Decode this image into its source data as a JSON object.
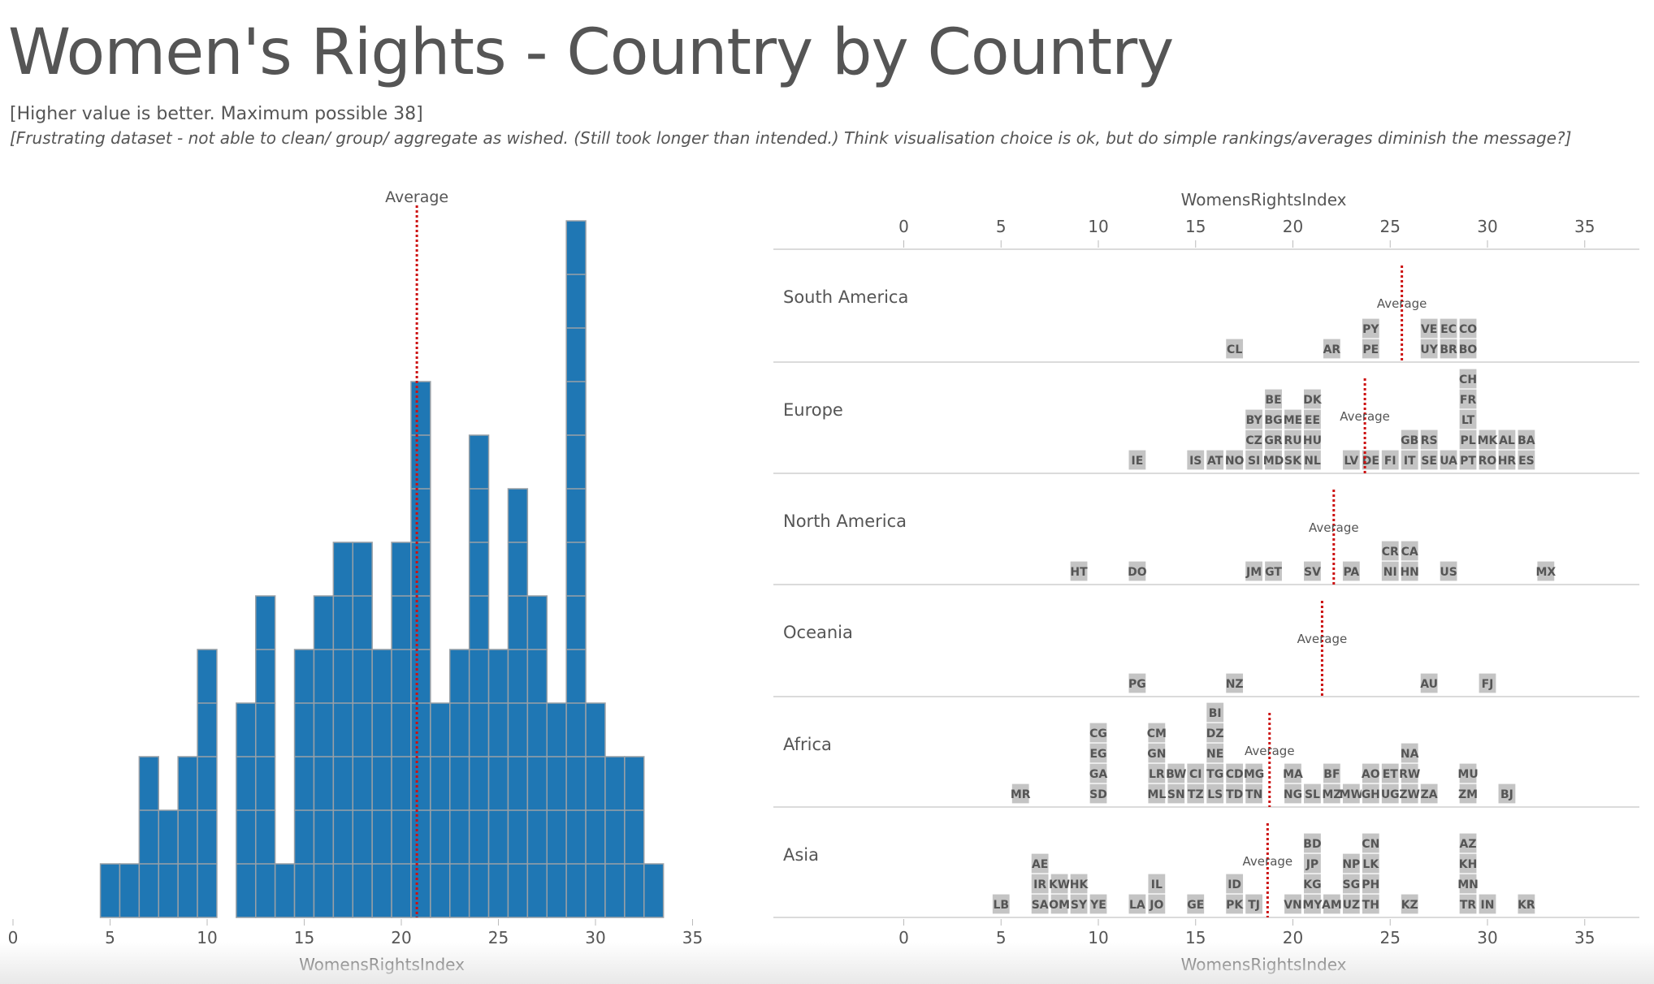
{
  "title": "Women's Rights - Country by Country",
  "subtitle": "[Higher value is better. Maximum possible 38]",
  "note": "[Frustrating dataset - not able to clean/ group/ aggregate as wished. (Still took longer than intended.) Think visualisation choice is ok, but do simple rankings/averages diminish the message?]",
  "colors": {
    "bar": "#1f77b4",
    "bar_stroke": "#9aa0a6",
    "tile": "#c4c4c4",
    "tile_stroke": "#ffffff",
    "average": "#cc1111",
    "text": "#555555"
  },
  "chart_data": [
    {
      "type": "bar",
      "xlabel": "WomensRightsIndex",
      "ylabel": "",
      "xlim": [
        0,
        35
      ],
      "x_ticks": [
        0,
        5,
        10,
        15,
        20,
        25,
        30,
        35
      ],
      "average_label": "Average",
      "average": 20.8,
      "x": [
        5,
        6,
        7,
        8,
        9,
        10,
        12,
        13,
        14,
        15,
        16,
        17,
        18,
        19,
        20,
        21,
        22,
        23,
        24,
        25,
        26,
        27,
        28,
        29,
        30,
        31,
        32,
        33
      ],
      "values": [
        1,
        1,
        3,
        2,
        3,
        5,
        4,
        6,
        1,
        5,
        6,
        7,
        7,
        5,
        7,
        10,
        4,
        5,
        9,
        5,
        8,
        6,
        4,
        13,
        4,
        3,
        3,
        1
      ]
    },
    {
      "type": "scatter",
      "xlabel": "WomensRightsIndex",
      "xlim": [
        0,
        38
      ],
      "x_ticks": [
        0,
        5,
        10,
        15,
        20,
        25,
        30,
        35
      ],
      "average_label": "Average",
      "groups": [
        {
          "name": "South America",
          "average": 25.6,
          "points": [
            [
              "CL",
              17
            ],
            [
              "AR",
              22
            ],
            [
              "PE",
              24
            ],
            [
              "PY",
              24
            ],
            [
              "UY",
              27
            ],
            [
              "VE",
              27
            ],
            [
              "BR",
              28
            ],
            [
              "EC",
              28
            ],
            [
              "BO",
              29
            ],
            [
              "CO",
              29
            ]
          ]
        },
        {
          "name": "Europe",
          "average": 23.7,
          "points": [
            [
              "IE",
              12
            ],
            [
              "IS",
              15
            ],
            [
              "AT",
              16
            ],
            [
              "NO",
              17
            ],
            [
              "SI",
              18
            ],
            [
              "CZ",
              18
            ],
            [
              "BY",
              18
            ],
            [
              "MD",
              19
            ],
            [
              "GR",
              19
            ],
            [
              "BG",
              19
            ],
            [
              "BE",
              19
            ],
            [
              "SK",
              20
            ],
            [
              "RU",
              20
            ],
            [
              "ME",
              20
            ],
            [
              "NL",
              21
            ],
            [
              "HU",
              21
            ],
            [
              "EE",
              21
            ],
            [
              "DK",
              21
            ],
            [
              "LV",
              23
            ],
            [
              "DE",
              24
            ],
            [
              "FI",
              25
            ],
            [
              "IT",
              26
            ],
            [
              "GB",
              26
            ],
            [
              "SE",
              27
            ],
            [
              "RS",
              27
            ],
            [
              "UA",
              28
            ],
            [
              "PT",
              29
            ],
            [
              "PL",
              29
            ],
            [
              "LT",
              29
            ],
            [
              "FR",
              29
            ],
            [
              "CH",
              29
            ],
            [
              "RO",
              30
            ],
            [
              "MK",
              30
            ],
            [
              "HR",
              31
            ],
            [
              "AL",
              31
            ],
            [
              "ES",
              32
            ],
            [
              "BA",
              32
            ]
          ]
        },
        {
          "name": "North America",
          "average": 22.1,
          "points": [
            [
              "HT",
              9
            ],
            [
              "DO",
              12
            ],
            [
              "JM",
              18
            ],
            [
              "GT",
              19
            ],
            [
              "SV",
              21
            ],
            [
              "PA",
              23
            ],
            [
              "NI",
              25
            ],
            [
              "CR",
              25
            ],
            [
              "HN",
              26
            ],
            [
              "CA",
              26
            ],
            [
              "US",
              28
            ],
            [
              "MX",
              33
            ]
          ]
        },
        {
          "name": "Oceania",
          "average": 21.5,
          "points": [
            [
              "PG",
              12
            ],
            [
              "NZ",
              17
            ],
            [
              "AU",
              27
            ],
            [
              "FJ",
              30
            ]
          ]
        },
        {
          "name": "Africa",
          "average": 18.8,
          "points": [
            [
              "MR",
              6
            ],
            [
              "SD",
              10
            ],
            [
              "GA",
              10
            ],
            [
              "EG",
              10
            ],
            [
              "CG",
              10
            ],
            [
              "ML",
              13
            ],
            [
              "LR",
              13
            ],
            [
              "GN",
              13
            ],
            [
              "CM",
              13
            ],
            [
              "SN",
              14
            ],
            [
              "BW",
              14
            ],
            [
              "TZ",
              15
            ],
            [
              "CI",
              15
            ],
            [
              "LS",
              16
            ],
            [
              "TG",
              16
            ],
            [
              "NE",
              16
            ],
            [
              "DZ",
              16
            ],
            [
              "BI",
              16
            ],
            [
              "TD",
              17
            ],
            [
              "CD",
              17
            ],
            [
              "TN",
              18
            ],
            [
              "MG",
              18
            ],
            [
              "NG",
              20
            ],
            [
              "MA",
              20
            ],
            [
              "SL",
              21
            ],
            [
              "MZ",
              22
            ],
            [
              "BF",
              22
            ],
            [
              "MW",
              23
            ],
            [
              "GH",
              24
            ],
            [
              "AO",
              24
            ],
            [
              "UG",
              25
            ],
            [
              "ET",
              25
            ],
            [
              "ZW",
              26
            ],
            [
              "RW",
              26
            ],
            [
              "NA",
              26
            ],
            [
              "ZA",
              27
            ],
            [
              "ZM",
              29
            ],
            [
              "MU",
              29
            ],
            [
              "BJ",
              31
            ]
          ]
        },
        {
          "name": "Asia",
          "average": 18.7,
          "points": [
            [
              "LB",
              5
            ],
            [
              "SA",
              7
            ],
            [
              "IR",
              7
            ],
            [
              "AE",
              7
            ],
            [
              "OM",
              8
            ],
            [
              "KW",
              8
            ],
            [
              "SY",
              9
            ],
            [
              "HK",
              9
            ],
            [
              "YE",
              10
            ],
            [
              "LA",
              12
            ],
            [
              "JO",
              13
            ],
            [
              "IL",
              13
            ],
            [
              "GE",
              15
            ],
            [
              "PK",
              17
            ],
            [
              "ID",
              17
            ],
            [
              "TJ",
              18
            ],
            [
              "VN",
              20
            ],
            [
              "MY",
              21
            ],
            [
              "KG",
              21
            ],
            [
              "JP",
              21
            ],
            [
              "BD",
              21
            ],
            [
              "AM",
              22
            ],
            [
              "UZ",
              23
            ],
            [
              "SG",
              23
            ],
            [
              "NP",
              23
            ],
            [
              "TH",
              24
            ],
            [
              "PH",
              24
            ],
            [
              "LK",
              24
            ],
            [
              "CN",
              24
            ],
            [
              "KZ",
              26
            ],
            [
              "TR",
              29
            ],
            [
              "MN",
              29
            ],
            [
              "KH",
              29
            ],
            [
              "AZ",
              29
            ],
            [
              "IN",
              30
            ],
            [
              "KR",
              32
            ]
          ]
        }
      ]
    }
  ]
}
